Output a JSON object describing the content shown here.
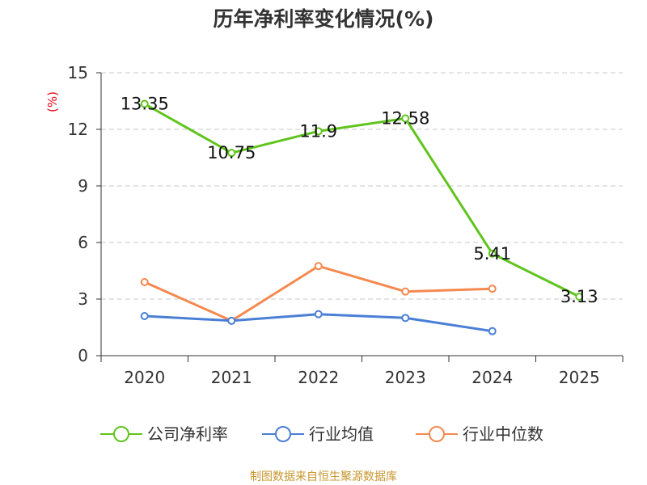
{
  "chart_data": {
    "type": "line",
    "title": "历年净利率变化情况(%)",
    "ylabel": "(%)",
    "xlabel": "",
    "categories": [
      "2020",
      "2021",
      "2022",
      "2023",
      "2024",
      "2025"
    ],
    "ylim": [
      0,
      15
    ],
    "yticks": [
      "0",
      "3",
      "6",
      "9",
      "12",
      "15"
    ],
    "grid": true,
    "legend_position": "bottom",
    "series": [
      {
        "name": "公司净利率",
        "color": "#5fc41c",
        "values": [
          13.35,
          10.75,
          11.9,
          12.58,
          5.41,
          3.13
        ],
        "labels": [
          "13.35",
          "10.75",
          "11.9",
          "12.58",
          "5.41",
          "3.13"
        ]
      },
      {
        "name": "行业均值",
        "color": "#4a7fd6",
        "values": [
          2.1,
          1.85,
          2.2,
          2.0,
          1.3,
          null
        ]
      },
      {
        "name": "行业中位数",
        "color": "#f5894f",
        "values": [
          3.9,
          1.85,
          4.75,
          3.4,
          3.55,
          null
        ]
      }
    ]
  },
  "source": "制图数据来自恒生聚源数据库"
}
